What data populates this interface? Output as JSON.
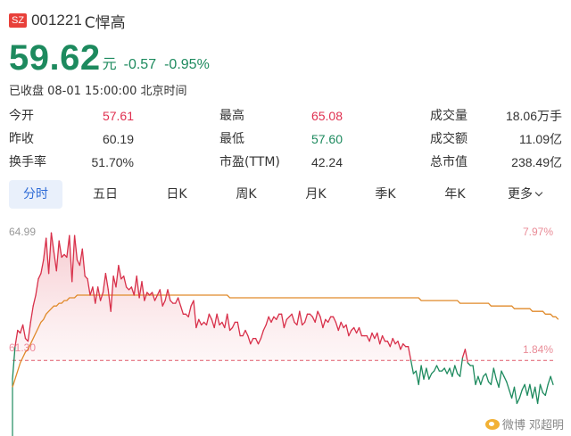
{
  "header": {
    "market_badge": "SZ",
    "code": "001221",
    "name": "C悍高"
  },
  "quote": {
    "price": "59.62",
    "unit": "元",
    "change": "-0.57",
    "change_pct": "-0.95%",
    "status": "已收盘 08-01 15:00:00 北京时间"
  },
  "stats": {
    "open": {
      "label": "今开",
      "value": "57.61"
    },
    "prev_close": {
      "label": "昨收",
      "value": "60.19"
    },
    "turnover_rate": {
      "label": "换手率",
      "value": "51.70%"
    },
    "high": {
      "label": "最高",
      "value": "65.08"
    },
    "low": {
      "label": "最低",
      "value": "57.60"
    },
    "pe_ttm": {
      "label": "市盈(TTM)",
      "value": "42.24"
    },
    "volume": {
      "label": "成交量",
      "value": "18.06万手"
    },
    "amount": {
      "label": "成交额",
      "value": "11.09亿"
    },
    "market_cap": {
      "label": "总市值",
      "value": "238.49亿"
    }
  },
  "tabs": [
    {
      "label": "分时",
      "active": true
    },
    {
      "label": "五日"
    },
    {
      "label": "日K"
    },
    {
      "label": "周K"
    },
    {
      "label": "月K"
    },
    {
      "label": "季K"
    },
    {
      "label": "年K"
    },
    {
      "label": "更多"
    }
  ],
  "chart_data": {
    "type": "line",
    "y_left_labels": [
      "64.99",
      "61.30"
    ],
    "y_right_labels": [
      "7.97%",
      "1.84%"
    ],
    "reference_price": 60.19,
    "y_range": [
      57.4,
      65.2
    ],
    "price_series_color_up": "#d8304a",
    "price_series_color_down": "#1d8a5e",
    "avg_series_color": "#e08a2a",
    "price": [
      59.5,
      60.7,
      61.3,
      61.2,
      61.5,
      61.0,
      60.9,
      61.6,
      62.2,
      62.6,
      63.2,
      63.4,
      63.9,
      64.7,
      63.4,
      64.9,
      64.2,
      63.5,
      64.6,
      64.0,
      64.1,
      64.0,
      64.8,
      63.1,
      64.8,
      63.9,
      63.7,
      64.3,
      63.3,
      63.2,
      62.6,
      62.9,
      62.3,
      62.9,
      62.4,
      62.7,
      63.4,
      62.8,
      62.0,
      63.3,
      62.9,
      63.7,
      63.2,
      63.3,
      62.9,
      62.8,
      62.9,
      62.6,
      63.3,
      62.5,
      63.1,
      62.4,
      62.7,
      62.6,
      62.7,
      62.4,
      62.6,
      62.8,
      62.2,
      62.4,
      62.8,
      62.4,
      62.3,
      62.3,
      62.5,
      62.2,
      61.9,
      61.9,
      61.8,
      62.2,
      62.4,
      61.4,
      61.7,
      61.5,
      61.6,
      61.5,
      61.9,
      61.7,
      61.4,
      61.9,
      61.5,
      61.6,
      61.4,
      61.9,
      61.3,
      61.4,
      61.6,
      61.6,
      61.1,
      61.1,
      61.3,
      61.1,
      60.8,
      61.0,
      61.0,
      60.8,
      61.0,
      61.3,
      61.5,
      61.8,
      61.6,
      61.8,
      61.7,
      61.9,
      61.9,
      61.4,
      61.7,
      61.8,
      61.9,
      61.6,
      61.5,
      62.0,
      61.5,
      61.6,
      61.9,
      61.9,
      61.8,
      61.6,
      62.0,
      61.8,
      61.4,
      61.7,
      61.6,
      61.8,
      61.8,
      61.6,
      61.3,
      61.6,
      61.4,
      61.5,
      61.1,
      61.3,
      61.4,
      61.2,
      61.4,
      61.1,
      61.1,
      61.1,
      60.9,
      61.2,
      61.0,
      61.2,
      60.8,
      61.1,
      60.9,
      60.9,
      60.7,
      61.0,
      60.8,
      60.9,
      60.6,
      60.8,
      60.7,
      60.7,
      60.2,
      59.7,
      59.8,
      59.3,
      60.0,
      59.5,
      59.9,
      59.5,
      59.7,
      59.8,
      60.0,
      59.8,
      59.8,
      59.9,
      59.7,
      59.9,
      59.6,
      60.0,
      59.7,
      59.6,
      60.3,
      60.6,
      60.1,
      60.0,
      60.0,
      59.3,
      59.6,
      59.3,
      59.6,
      59.7,
      59.4,
      59.3,
      59.9,
      59.5,
      59.2,
      59.8,
      59.6,
      59.4,
      59.1,
      58.8,
      59.2,
      58.6,
      58.8,
      59.1,
      59.3,
      58.9,
      59.3,
      58.8,
      59.2,
      58.6,
      59.3,
      59.0,
      58.9,
      59.3,
      59.6,
      59.3
    ],
    "avg": [
      59.2,
      59.5,
      59.8,
      60.1,
      60.3,
      60.5,
      60.6,
      60.8,
      61.0,
      61.2,
      61.4,
      61.6,
      61.7,
      61.9,
      62.0,
      62.1,
      62.2,
      62.2,
      62.3,
      62.3,
      62.4,
      62.4,
      62.5,
      62.5,
      62.5,
      62.6,
      62.6,
      62.6,
      62.6,
      62.6,
      62.6,
      62.6,
      62.6,
      62.6,
      62.6,
      62.6,
      62.6,
      62.6,
      62.6,
      62.6,
      62.6,
      62.6,
      62.6,
      62.6,
      62.6,
      62.6,
      62.6,
      62.6,
      62.6,
      62.6,
      62.6,
      62.6,
      62.6,
      62.6,
      62.6,
      62.6,
      62.6,
      62.6,
      62.6,
      62.6,
      62.6,
      62.6,
      62.6,
      62.6,
      62.6,
      62.6,
      62.6,
      62.6,
      62.6,
      62.6,
      62.6,
      62.6,
      62.6,
      62.6,
      62.6,
      62.6,
      62.6,
      62.6,
      62.6,
      62.6,
      62.6,
      62.6,
      62.6,
      62.6,
      62.5,
      62.5,
      62.5,
      62.5,
      62.5,
      62.5,
      62.5,
      62.5,
      62.5,
      62.5,
      62.5,
      62.5,
      62.5,
      62.5,
      62.5,
      62.5,
      62.5,
      62.5,
      62.5,
      62.5,
      62.5,
      62.5,
      62.5,
      62.5,
      62.5,
      62.5,
      62.5,
      62.5,
      62.5,
      62.5,
      62.5,
      62.5,
      62.5,
      62.5,
      62.5,
      62.5,
      62.5,
      62.5,
      62.5,
      62.5,
      62.5,
      62.5,
      62.5,
      62.5,
      62.5,
      62.5,
      62.5,
      62.5,
      62.5,
      62.5,
      62.5,
      62.5,
      62.5,
      62.5,
      62.5,
      62.5,
      62.5,
      62.5,
      62.5,
      62.5,
      62.5,
      62.5,
      62.5,
      62.5,
      62.5,
      62.5,
      62.5,
      62.5,
      62.5,
      62.5,
      62.5,
      62.5,
      62.5,
      62.5,
      62.4,
      62.4,
      62.4,
      62.4,
      62.4,
      62.4,
      62.4,
      62.4,
      62.4,
      62.4,
      62.4,
      62.4,
      62.4,
      62.4,
      62.4,
      62.3,
      62.3,
      62.3,
      62.3,
      62.3,
      62.3,
      62.3,
      62.3,
      62.3,
      62.3,
      62.3,
      62.3,
      62.2,
      62.2,
      62.2,
      62.2,
      62.2,
      62.2,
      62.2,
      62.2,
      62.2,
      62.1,
      62.1,
      62.1,
      62.1,
      62.1,
      62.1,
      62.1,
      62.0,
      62.0,
      62.0,
      62.0,
      62.0,
      61.9,
      61.9,
      61.9,
      61.8,
      61.8,
      61.7
    ]
  },
  "watermark": "微博 邓超明"
}
